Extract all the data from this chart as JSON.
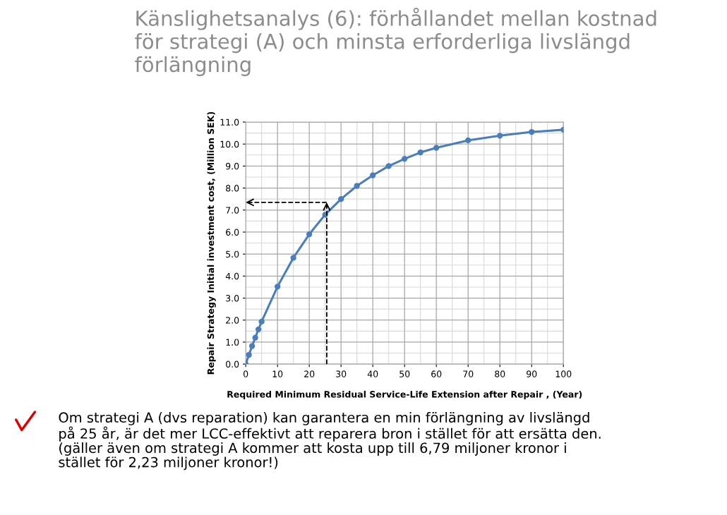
{
  "chart_data": {
    "type": "line",
    "title": "Känslighetsanalys (6): förhållandet mellan kostnad\nför strategi (A) och minsta erforderliga livslängd\nförlängning",
    "xlabel": "Required Minimum Residual Service-Life Extension after Repair , (Year)",
    "ylabel": "Repair Strategy Initial investment cost, (Million SEK)",
    "xlim": [
      0,
      100
    ],
    "xticks": [
      0,
      10,
      20,
      30,
      40,
      50,
      60,
      70,
      80,
      90,
      100
    ],
    "ylim": [
      0,
      11
    ],
    "yticks": [
      {
        "value": 0,
        "label": "0.0"
      },
      {
        "value": 1,
        "label": "1.0"
      },
      {
        "value": 2,
        "label": "2.0"
      },
      {
        "value": 3,
        "label": "3.0"
      },
      {
        "value": 4,
        "label": "4.0"
      },
      {
        "value": 5,
        "label": "5.0"
      },
      {
        "value": 6,
        "label": "6.0"
      },
      {
        "value": 7,
        "label": "7.0"
      },
      {
        "value": 8,
        "label": "8.0"
      },
      {
        "value": 9,
        "label": "9.0"
      },
      {
        "value": 10,
        "label": "10.0"
      },
      {
        "value": 11,
        "label": "11.0"
      }
    ],
    "grid": true,
    "marker": "circle",
    "line_style": "solid",
    "series": [
      {
        "color": "#4a7ebb",
        "x": [
          0,
          1,
          2,
          3,
          4,
          5,
          10,
          15,
          20,
          25,
          30,
          35,
          40,
          45,
          50,
          55,
          60,
          70,
          80,
          90,
          100
        ],
        "values": [
          0,
          0.42,
          0.82,
          1.2,
          1.58,
          1.93,
          3.52,
          4.83,
          5.9,
          6.79,
          7.5,
          8.1,
          8.58,
          9.0,
          9.33,
          9.62,
          9.83,
          10.17,
          10.38,
          10.55,
          10.65
        ]
      }
    ],
    "ref_lines": [
      {
        "axis": "x",
        "value": 25.5,
        "color": "#000000",
        "line_style": "dashed"
      },
      {
        "axis": "y",
        "value": 7.35,
        "color": "#000000",
        "line_style": "dashed"
      }
    ],
    "annotations": [
      "Om strategi A (dvs reparation) kan garantera en min förlängning av livslängd\npå 25 år, är det mer LCC-effektivt att reparera bron i stället för att ersätta den.\n(gäller även om strategi A kommer att kosta upp till 6,79 miljoner kronor i\nstället för 2,23 miljoner kronor!)"
    ]
  }
}
